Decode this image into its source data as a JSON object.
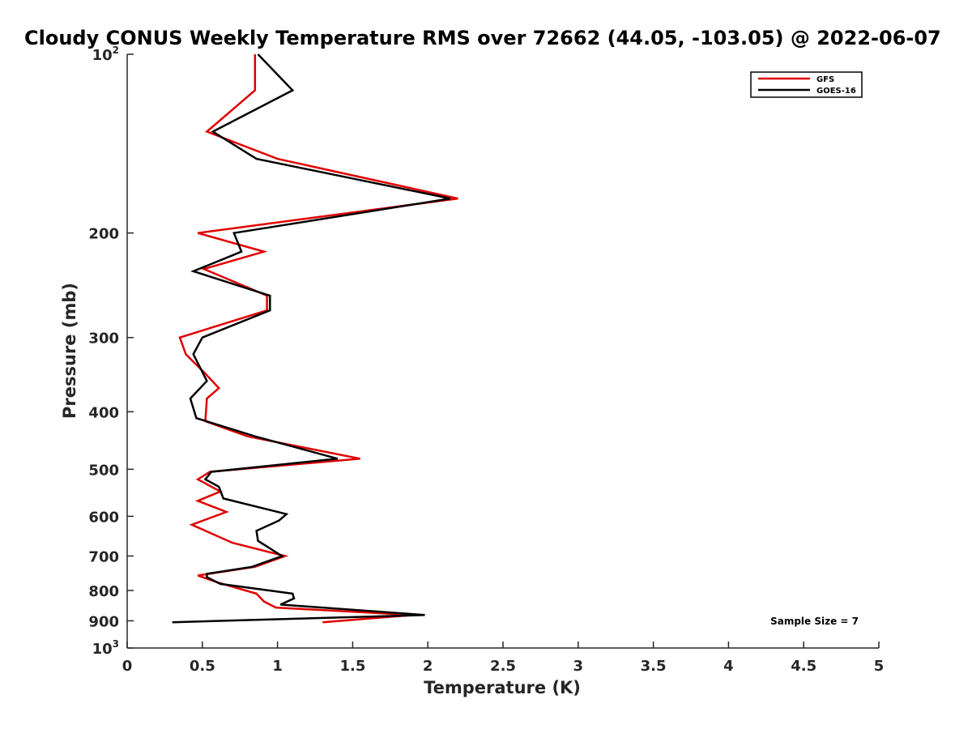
{
  "chart_data": {
    "type": "line",
    "title": "Cloudy CONUS Weekly Temperature RMS over 72662 (44.05, -103.05) @ 2022-06-07",
    "xlabel": "Temperature (K)",
    "ylabel": "Pressure (mb)",
    "xlim": [
      0,
      5
    ],
    "ylim": [
      100,
      1000
    ],
    "y_scale": "log",
    "y_reversed": true,
    "grid": false,
    "legend_position": "top-right",
    "x_ticks": [
      "0",
      "0.5",
      "1",
      "1.5",
      "2",
      "2.5",
      "3",
      "3.5",
      "4",
      "4.5",
      "5"
    ],
    "y_ticks": [
      {
        "value": 100,
        "label": "10",
        "sup": "2"
      },
      {
        "value": 200,
        "label": "200",
        "sup": ""
      },
      {
        "value": 300,
        "label": "300",
        "sup": ""
      },
      {
        "value": 400,
        "label": "400",
        "sup": ""
      },
      {
        "value": 500,
        "label": "500",
        "sup": ""
      },
      {
        "value": 600,
        "label": "600",
        "sup": ""
      },
      {
        "value": 700,
        "label": "700",
        "sup": ""
      },
      {
        "value": 800,
        "label": "800",
        "sup": ""
      },
      {
        "value": 900,
        "label": "900",
        "sup": ""
      },
      {
        "value": 1000,
        "label": "10",
        "sup": "3"
      }
    ],
    "series": [
      {
        "name": "GFS",
        "color": "#e00000",
        "points": [
          [
            0.85,
            100
          ],
          [
            0.85,
            115
          ],
          [
            0.53,
            135
          ],
          [
            1.0,
            150
          ],
          [
            2.2,
            175
          ],
          [
            0.47,
            200
          ],
          [
            0.91,
            215
          ],
          [
            0.51,
            230
          ],
          [
            0.93,
            255
          ],
          [
            0.93,
            270
          ],
          [
            0.35,
            300
          ],
          [
            0.39,
            320
          ],
          [
            0.52,
            345
          ],
          [
            0.61,
            365
          ],
          [
            0.53,
            380
          ],
          [
            0.52,
            415
          ],
          [
            0.8,
            440
          ],
          [
            1.55,
            480
          ],
          [
            0.55,
            505
          ],
          [
            0.47,
            520
          ],
          [
            0.62,
            545
          ],
          [
            0.47,
            565
          ],
          [
            0.66,
            590
          ],
          [
            0.43,
            620
          ],
          [
            0.7,
            665
          ],
          [
            1.05,
            700
          ],
          [
            0.85,
            730
          ],
          [
            0.47,
            755
          ],
          [
            0.6,
            775
          ],
          [
            0.86,
            810
          ],
          [
            0.91,
            835
          ],
          [
            0.99,
            855
          ],
          [
            1.9,
            880
          ],
          [
            1.3,
            905
          ]
        ]
      },
      {
        "name": "GOES-16",
        "color": "#000000",
        "points": [
          [
            0.87,
            100
          ],
          [
            1.1,
            115
          ],
          [
            0.57,
            135
          ],
          [
            0.86,
            150
          ],
          [
            2.15,
            175
          ],
          [
            0.71,
            200
          ],
          [
            0.76,
            215
          ],
          [
            0.44,
            232
          ],
          [
            0.95,
            255
          ],
          [
            0.95,
            270
          ],
          [
            0.5,
            300
          ],
          [
            0.44,
            320
          ],
          [
            0.53,
            355
          ],
          [
            0.42,
            380
          ],
          [
            0.46,
            410
          ],
          [
            0.85,
            440
          ],
          [
            1.4,
            480
          ],
          [
            0.56,
            505
          ],
          [
            0.52,
            520
          ],
          [
            0.61,
            535
          ],
          [
            0.64,
            560
          ],
          [
            1.06,
            595
          ],
          [
            1.01,
            610
          ],
          [
            0.86,
            635
          ],
          [
            0.87,
            660
          ],
          [
            1.03,
            700
          ],
          [
            0.83,
            730
          ],
          [
            0.53,
            750
          ],
          [
            0.53,
            760
          ],
          [
            0.62,
            780
          ],
          [
            1.1,
            810
          ],
          [
            1.11,
            825
          ],
          [
            1.02,
            845
          ],
          [
            1.98,
            880
          ],
          [
            0.3,
            905
          ]
        ]
      }
    ],
    "annotation": "Sample Size = 7"
  }
}
